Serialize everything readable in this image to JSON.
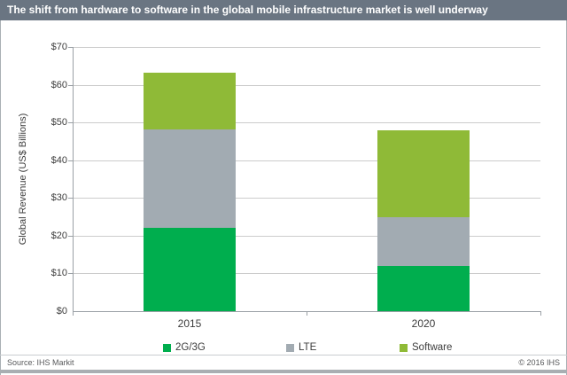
{
  "header": {
    "title": "The shift from hardware to software in the global mobile infrastructure market is well underway",
    "bar_color": "#6a7582"
  },
  "chart_data": {
    "type": "bar",
    "stacked": true,
    "title": "The shift from hardware to software in the global mobile infrastructure market is well underway",
    "xlabel": "",
    "ylabel": "Global Revenue (US$ Billions)",
    "ylim": [
      0,
      70
    ],
    "ytick_step": 10,
    "ytick_labels": [
      "$0",
      "$10",
      "$20",
      "$30",
      "$40",
      "$50",
      "$60",
      "$70"
    ],
    "grid": true,
    "legend_position": "bottom",
    "categories": [
      "2015",
      "2020"
    ],
    "series": [
      {
        "name": "2G/3G",
        "color": "#00ae4e",
        "values": [
          22,
          12
        ]
      },
      {
        "name": "LTE",
        "color": "#a2abb2",
        "values": [
          26,
          13
        ]
      },
      {
        "name": "Software",
        "color": "#8fba37",
        "values": [
          15,
          23
        ]
      }
    ],
    "totals": [
      63,
      48
    ]
  },
  "footer": {
    "source": "Source: IHS Markit",
    "copyright": "© 2016 IHS"
  }
}
